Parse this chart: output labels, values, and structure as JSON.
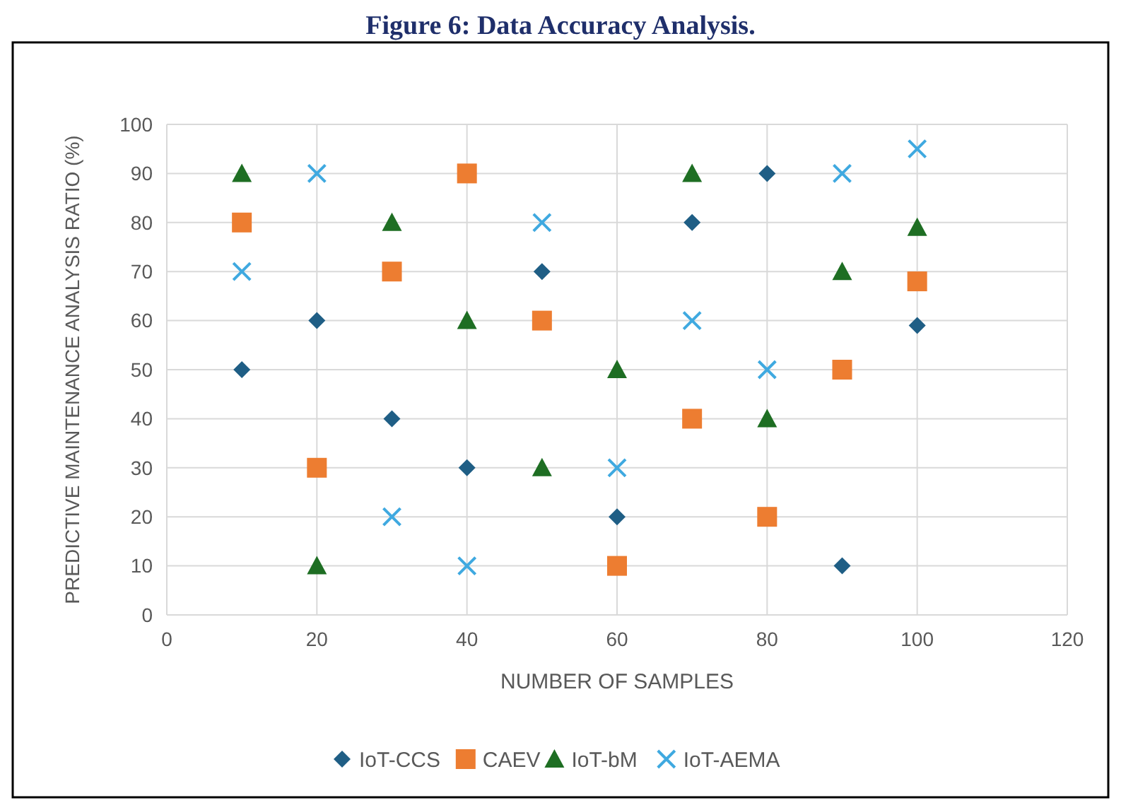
{
  "chart_data": {
    "type": "scatter",
    "title": "Figure 6: Data Accuracy Analysis.",
    "xlabel": "NUMBER OF SAMPLES",
    "ylabel": "PREDICTIVE MAINTENANCE ANALYSIS RATIO (%)",
    "x": [
      10,
      20,
      30,
      40,
      50,
      60,
      70,
      80,
      90,
      100
    ],
    "xlim": [
      0,
      120
    ],
    "xticks": [
      0,
      20,
      40,
      60,
      80,
      100,
      120
    ],
    "ylim": [
      0,
      100
    ],
    "yticks": [
      0,
      10,
      20,
      30,
      40,
      50,
      60,
      70,
      80,
      90,
      100
    ],
    "grid": true,
    "legend": "bottom",
    "series": [
      {
        "name": "IoT-CCS",
        "color": "#1f5e85",
        "marker": "diamond",
        "values": [
          50,
          60,
          40,
          30,
          70,
          20,
          80,
          90,
          10,
          59
        ]
      },
      {
        "name": "CAEV",
        "color": "#ed7d31",
        "marker": "square",
        "values": [
          80,
          30,
          70,
          90,
          60,
          10,
          40,
          20,
          50,
          68
        ]
      },
      {
        "name": "IoT-bM",
        "color": "#1e6e23",
        "marker": "triangle",
        "values": [
          90,
          10,
          80,
          60,
          30,
          50,
          90,
          40,
          70,
          79
        ]
      },
      {
        "name": "IoT-AEMA",
        "color": "#3fa9e0",
        "marker": "cross",
        "values": [
          70,
          90,
          20,
          10,
          80,
          30,
          60,
          50,
          90,
          95
        ]
      }
    ]
  }
}
